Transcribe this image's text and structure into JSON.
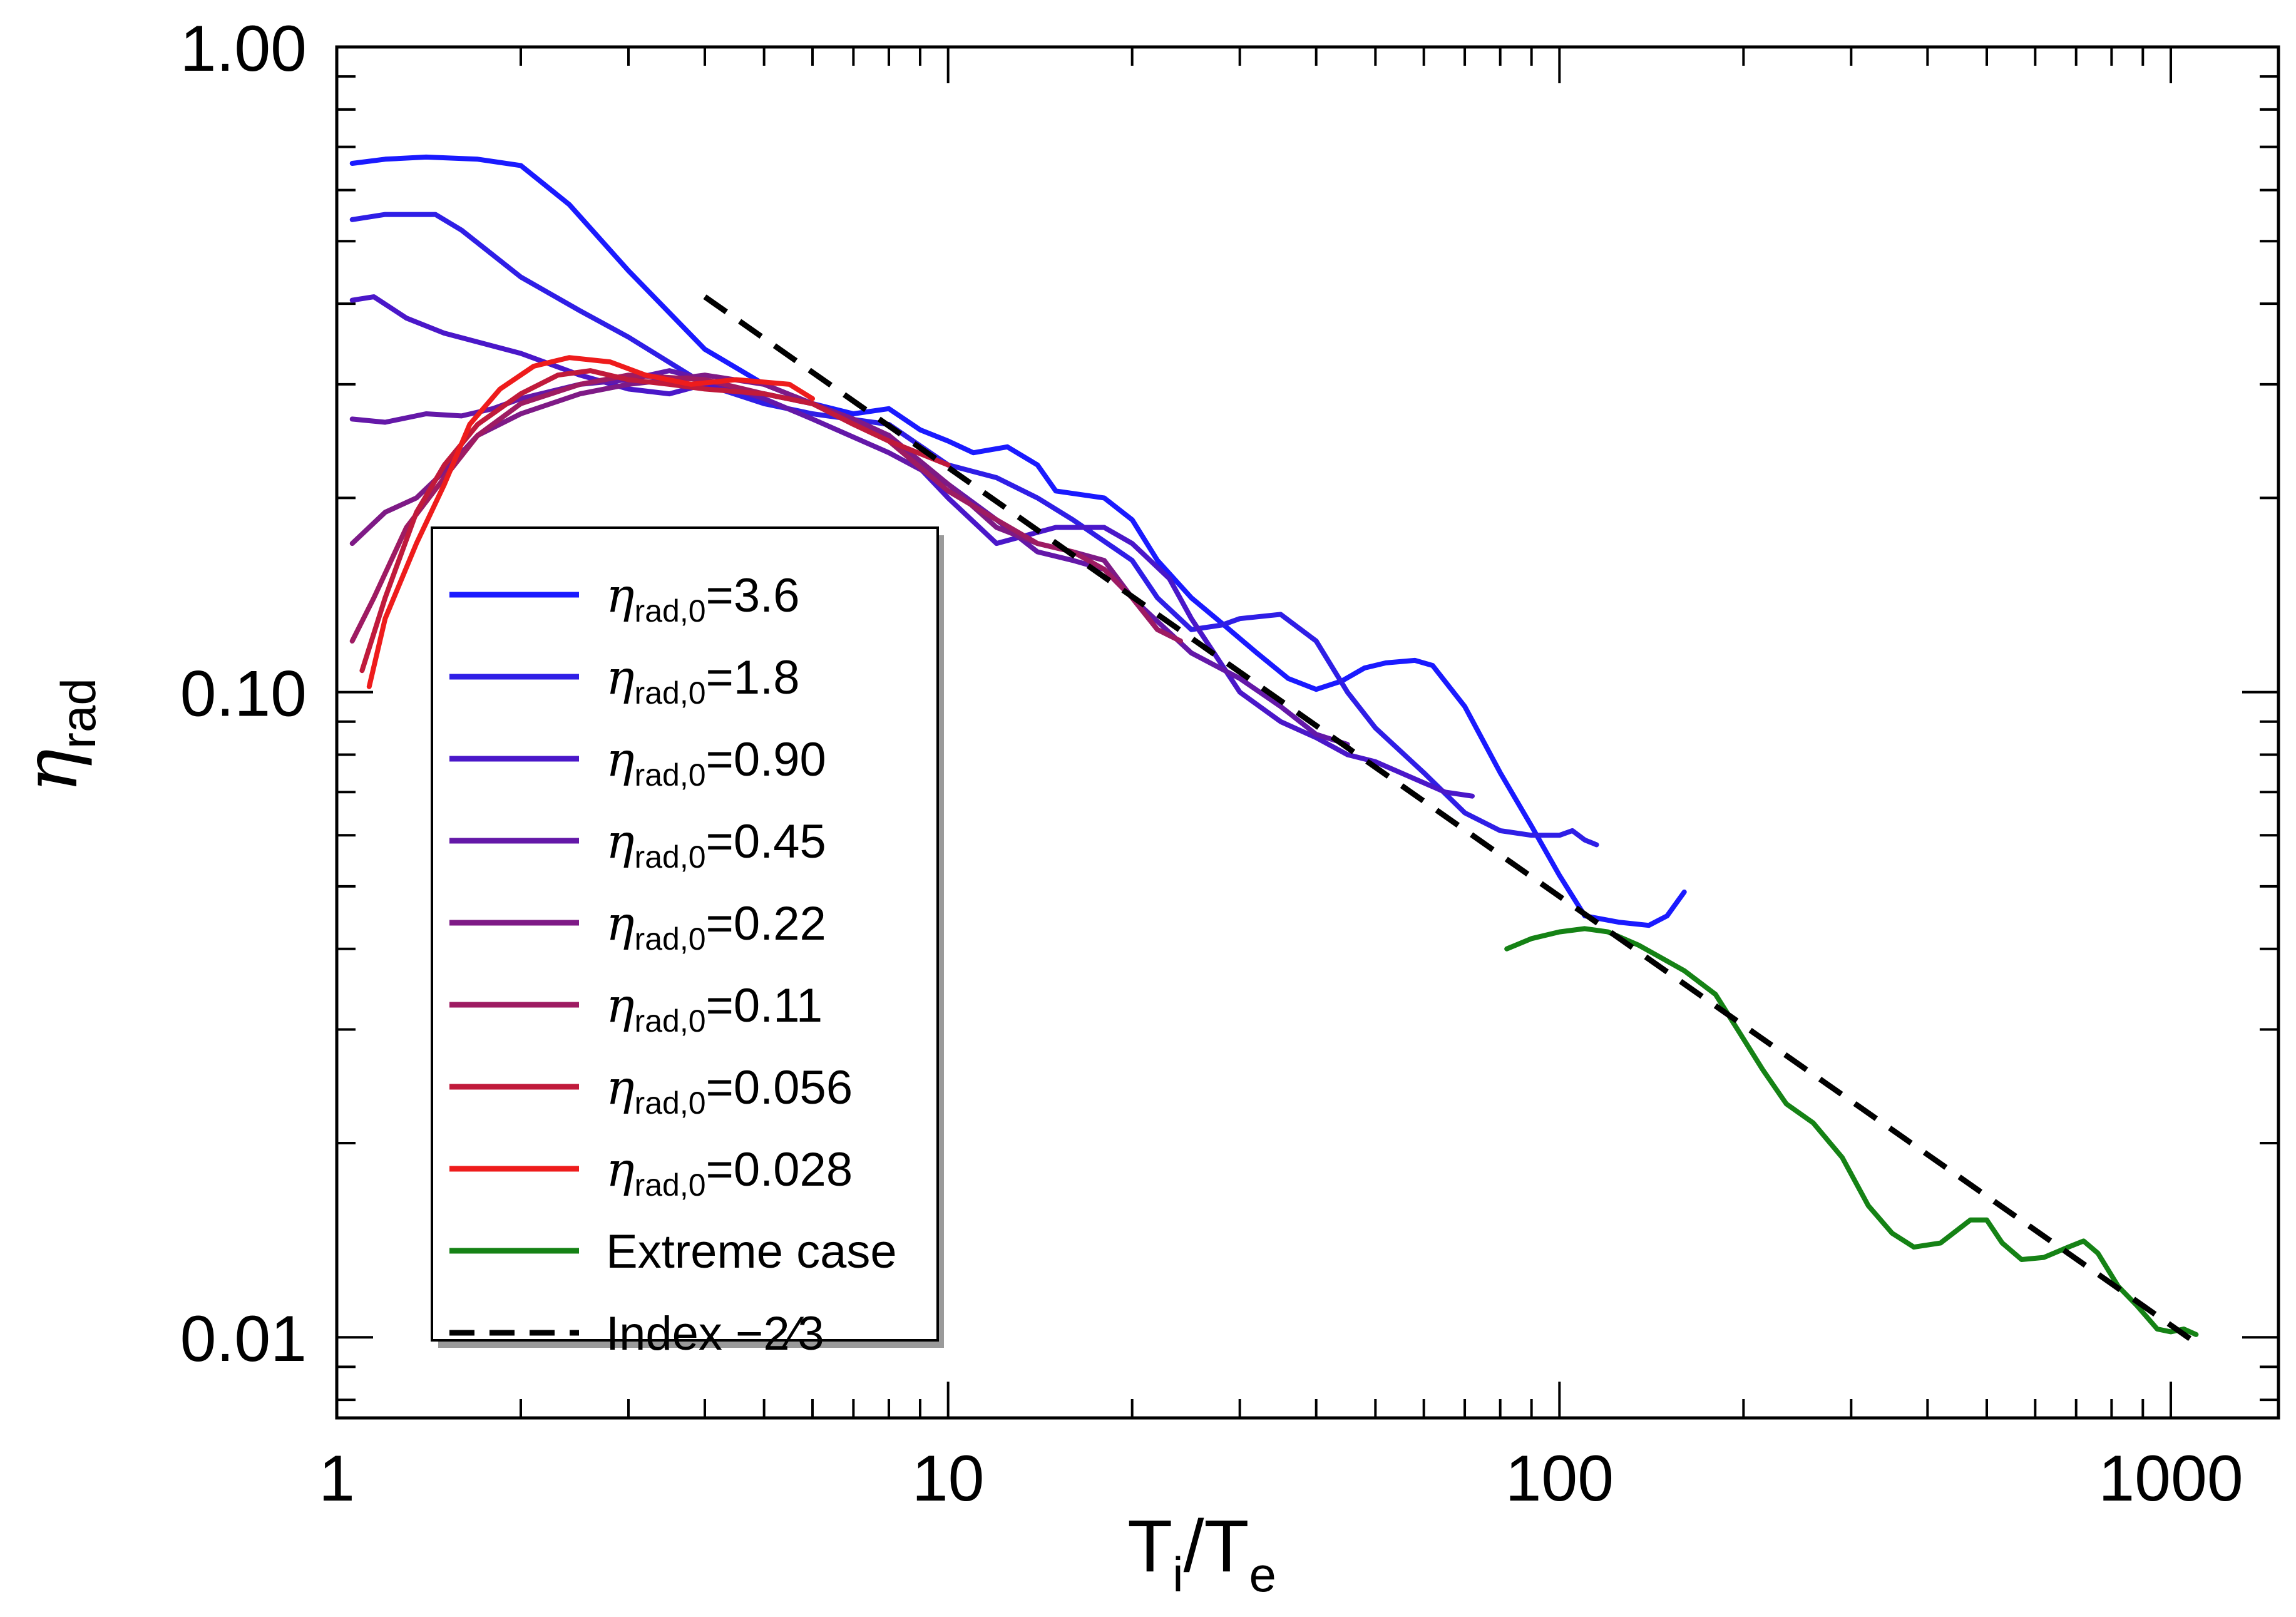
{
  "chart_data": {
    "type": "line",
    "title": "",
    "xlabel": {
      "main": "T",
      "sub1": "i",
      "mid": "/T",
      "sub2": "e"
    },
    "ylabel": {
      "main": "η",
      "sub": "rad"
    },
    "xscale": "log",
    "yscale": "log",
    "xlim": [
      1,
      1500
    ],
    "ylim": [
      0.0075,
      1.0
    ],
    "xticks": [
      {
        "value": 1,
        "label": "1"
      },
      {
        "value": 10,
        "label": "10"
      },
      {
        "value": 100,
        "label": "100"
      },
      {
        "value": 1000,
        "label": "1000"
      }
    ],
    "yticks": [
      {
        "value": 0.01,
        "label": "0.01"
      },
      {
        "value": 0.1,
        "label": "0.10"
      },
      {
        "value": 1.0,
        "label": "1.00"
      }
    ],
    "legend_position": "left-center",
    "legend_prefix": "η",
    "legend_sub": "rad,0",
    "series": [
      {
        "name": "3.6",
        "legend": "=3.6",
        "color": "#1a1aff",
        "dash": false,
        "points": [
          [
            1.06,
            0.66
          ],
          [
            1.2,
            0.67
          ],
          [
            1.4,
            0.675
          ],
          [
            1.7,
            0.67
          ],
          [
            2.0,
            0.655
          ],
          [
            2.4,
            0.57
          ],
          [
            3.0,
            0.45
          ],
          [
            4.0,
            0.34
          ],
          [
            5.0,
            0.3
          ],
          [
            6.0,
            0.28
          ],
          [
            7.0,
            0.27
          ],
          [
            8.0,
            0.275
          ],
          [
            9.0,
            0.255
          ],
          [
            10.0,
            0.245
          ],
          [
            11.0,
            0.235
          ],
          [
            12.5,
            0.24
          ],
          [
            14.0,
            0.225
          ],
          [
            15.0,
            0.205
          ],
          [
            18.0,
            0.2
          ],
          [
            20.0,
            0.185
          ],
          [
            22.0,
            0.16
          ],
          [
            25.0,
            0.14
          ],
          [
            28.0,
            0.128
          ],
          [
            32.0,
            0.115
          ],
          [
            36.0,
            0.105
          ],
          [
            40.0,
            0.101
          ],
          [
            44.0,
            0.104
          ],
          [
            48.0,
            0.109
          ],
          [
            52.0,
            0.111
          ],
          [
            58.0,
            0.112
          ],
          [
            62.0,
            0.11
          ],
          [
            70.0,
            0.095
          ],
          [
            80.0,
            0.075
          ],
          [
            90.0,
            0.062
          ],
          [
            100.0,
            0.052
          ],
          [
            110.0,
            0.045
          ],
          [
            125.0,
            0.044
          ],
          [
            140.0,
            0.0435
          ],
          [
            150.0,
            0.045
          ],
          [
            160.0,
            0.049
          ]
        ]
      },
      {
        "name": "1.8",
        "legend": "=1.8",
        "color": "#2f1ee6",
        "dash": false,
        "points": [
          [
            1.06,
            0.54
          ],
          [
            1.2,
            0.55
          ],
          [
            1.45,
            0.55
          ],
          [
            1.6,
            0.52
          ],
          [
            2.0,
            0.44
          ],
          [
            2.5,
            0.39
          ],
          [
            3.0,
            0.355
          ],
          [
            4.0,
            0.3
          ],
          [
            5.0,
            0.28
          ],
          [
            6.0,
            0.27
          ],
          [
            8.0,
            0.26
          ],
          [
            10.0,
            0.225
          ],
          [
            12.0,
            0.215
          ],
          [
            14.0,
            0.2
          ],
          [
            16.0,
            0.185
          ],
          [
            20.0,
            0.16
          ],
          [
            22.0,
            0.14
          ],
          [
            25.0,
            0.125
          ],
          [
            28.0,
            0.127
          ],
          [
            30.0,
            0.13
          ],
          [
            35.0,
            0.132
          ],
          [
            40.0,
            0.12
          ],
          [
            45.0,
            0.1
          ],
          [
            50.0,
            0.088
          ],
          [
            60.0,
            0.075
          ],
          [
            70.0,
            0.065
          ],
          [
            80.0,
            0.061
          ],
          [
            90.0,
            0.06
          ],
          [
            100.0,
            0.06
          ],
          [
            105.0,
            0.061
          ],
          [
            110.0,
            0.059
          ],
          [
            115.0,
            0.058
          ]
        ]
      },
      {
        "name": "0.90",
        "legend": "=0.90",
        "color": "#4a17c9",
        "dash": false,
        "points": [
          [
            1.06,
            0.405
          ],
          [
            1.15,
            0.41
          ],
          [
            1.3,
            0.38
          ],
          [
            1.5,
            0.36
          ],
          [
            2.0,
            0.335
          ],
          [
            2.5,
            0.31
          ],
          [
            3.0,
            0.295
          ],
          [
            3.5,
            0.29
          ],
          [
            4.0,
            0.3
          ],
          [
            5.0,
            0.29
          ],
          [
            6.0,
            0.28
          ],
          [
            8.0,
            0.25
          ],
          [
            10.0,
            0.2
          ],
          [
            12.0,
            0.17
          ],
          [
            15.0,
            0.18
          ],
          [
            18.0,
            0.18
          ],
          [
            20.0,
            0.17
          ],
          [
            23.0,
            0.15
          ],
          [
            25.0,
            0.13
          ],
          [
            30.0,
            0.1
          ],
          [
            35.0,
            0.09
          ],
          [
            40.0,
            0.085
          ],
          [
            45.0,
            0.08
          ],
          [
            50.0,
            0.078
          ],
          [
            55.0,
            0.075
          ],
          [
            65.0,
            0.07
          ],
          [
            72.0,
            0.069
          ]
        ]
      },
      {
        "name": "0.45",
        "legend": "=0.45",
        "color": "#6418a8",
        "dash": false,
        "points": [
          [
            1.06,
            0.265
          ],
          [
            1.2,
            0.262
          ],
          [
            1.4,
            0.27
          ],
          [
            1.6,
            0.268
          ],
          [
            1.8,
            0.275
          ],
          [
            2.0,
            0.285
          ],
          [
            2.5,
            0.3
          ],
          [
            3.0,
            0.305
          ],
          [
            3.5,
            0.315
          ],
          [
            4.0,
            0.305
          ],
          [
            5.0,
            0.285
          ],
          [
            6.0,
            0.265
          ],
          [
            8.0,
            0.235
          ],
          [
            10.0,
            0.21
          ],
          [
            12.0,
            0.185
          ],
          [
            14.0,
            0.165
          ],
          [
            16.0,
            0.16
          ],
          [
            18.0,
            0.155
          ],
          [
            20.0,
            0.14
          ],
          [
            25.0,
            0.115
          ],
          [
            30.0,
            0.105
          ],
          [
            35.0,
            0.095
          ],
          [
            40.0,
            0.086
          ],
          [
            45.0,
            0.083
          ]
        ]
      },
      {
        "name": "0.22",
        "legend": "=0.22",
        "color": "#7e1a86",
        "dash": false,
        "points": [
          [
            1.06,
            0.17
          ],
          [
            1.2,
            0.19
          ],
          [
            1.35,
            0.2
          ],
          [
            1.5,
            0.22
          ],
          [
            1.7,
            0.25
          ],
          [
            2.0,
            0.27
          ],
          [
            2.5,
            0.29
          ],
          [
            3.0,
            0.3
          ],
          [
            3.5,
            0.305
          ],
          [
            4.0,
            0.31
          ],
          [
            5.0,
            0.3
          ],
          [
            6.0,
            0.28
          ],
          [
            7.0,
            0.265
          ],
          [
            8.0,
            0.25
          ],
          [
            10.0,
            0.21
          ],
          [
            12.0,
            0.18
          ],
          [
            14.0,
            0.17
          ],
          [
            16.0,
            0.165
          ],
          [
            18.0,
            0.16
          ],
          [
            20.0,
            0.14
          ],
          [
            22.0,
            0.125
          ],
          [
            24.0,
            0.12
          ]
        ]
      },
      {
        "name": "0.11",
        "legend": "=0.11",
        "color": "#9e1b62",
        "dash": false,
        "points": [
          [
            1.06,
            0.12
          ],
          [
            1.15,
            0.14
          ],
          [
            1.3,
            0.18
          ],
          [
            1.5,
            0.215
          ],
          [
            1.7,
            0.25
          ],
          [
            2.0,
            0.28
          ],
          [
            2.5,
            0.3
          ],
          [
            3.0,
            0.31
          ],
          [
            4.0,
            0.305
          ],
          [
            5.0,
            0.29
          ],
          [
            6.0,
            0.28
          ],
          [
            8.0,
            0.245
          ],
          [
            10.0,
            0.205
          ],
          [
            12.0,
            0.185
          ],
          [
            14.0,
            0.17
          ],
          [
            16.0,
            0.165
          ],
          [
            18.0,
            0.155
          ],
          [
            20.0,
            0.14
          ],
          [
            22.0,
            0.125
          ],
          [
            24.0,
            0.12
          ]
        ]
      },
      {
        "name": "0.056",
        "legend": "=0.056",
        "color": "#c01a3b",
        "dash": false,
        "points": [
          [
            1.1,
            0.108
          ],
          [
            1.2,
            0.14
          ],
          [
            1.35,
            0.19
          ],
          [
            1.5,
            0.225
          ],
          [
            1.7,
            0.26
          ],
          [
            2.0,
            0.29
          ],
          [
            2.3,
            0.31
          ],
          [
            2.6,
            0.315
          ],
          [
            3.0,
            0.305
          ],
          [
            3.5,
            0.3
          ],
          [
            4.0,
            0.295
          ],
          [
            5.0,
            0.29
          ],
          [
            6.0,
            0.28
          ],
          [
            7.0,
            0.26
          ],
          [
            8.0,
            0.245
          ],
          [
            10.0,
            0.225
          ]
        ]
      },
      {
        "name": "0.028",
        "legend": "=0.028",
        "color": "#ee1c1c",
        "dash": false,
        "points": [
          [
            1.13,
            0.102
          ],
          [
            1.2,
            0.13
          ],
          [
            1.35,
            0.17
          ],
          [
            1.5,
            0.21
          ],
          [
            1.65,
            0.26
          ],
          [
            1.85,
            0.295
          ],
          [
            2.1,
            0.32
          ],
          [
            2.4,
            0.33
          ],
          [
            2.8,
            0.325
          ],
          [
            3.2,
            0.31
          ],
          [
            3.8,
            0.3
          ],
          [
            4.5,
            0.305
          ],
          [
            5.5,
            0.3
          ],
          [
            6.0,
            0.285
          ]
        ]
      },
      {
        "name": "Extreme case",
        "legend": "Extreme case",
        "color": "#158215",
        "dash": false,
        "points": [
          [
            82,
            0.04
          ],
          [
            90,
            0.0415
          ],
          [
            100,
            0.0425
          ],
          [
            110,
            0.043
          ],
          [
            120,
            0.0425
          ],
          [
            135,
            0.0405
          ],
          [
            160,
            0.037
          ],
          [
            180,
            0.034
          ],
          [
            200,
            0.029
          ],
          [
            215,
            0.026
          ],
          [
            235,
            0.023
          ],
          [
            260,
            0.0215
          ],
          [
            290,
            0.019
          ],
          [
            320,
            0.016
          ],
          [
            350,
            0.0145
          ],
          [
            380,
            0.0138
          ],
          [
            420,
            0.014
          ],
          [
            470,
            0.0152
          ],
          [
            500,
            0.0152
          ],
          [
            530,
            0.014
          ],
          [
            570,
            0.0132
          ],
          [
            620,
            0.0133
          ],
          [
            680,
            0.0138
          ],
          [
            720,
            0.0141
          ],
          [
            760,
            0.0135
          ],
          [
            820,
            0.012
          ],
          [
            880,
            0.0112
          ],
          [
            950,
            0.0103
          ],
          [
            1000,
            0.0102
          ],
          [
            1050,
            0.0103
          ],
          [
            1100,
            0.0101
          ]
        ]
      },
      {
        "name": "Index −2⁄3",
        "legend": "Index −2⁄3",
        "color": "#000000",
        "dash": true,
        "points": [
          [
            4.0,
            0.41
          ],
          [
            1100,
            0.0098
          ]
        ]
      }
    ]
  }
}
